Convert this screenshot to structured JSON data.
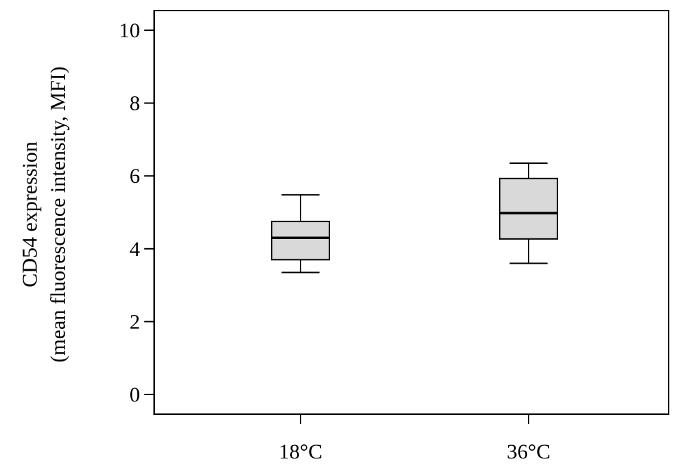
{
  "chart_data": {
    "type": "box",
    "ylabel_line1": "CD54 expression",
    "ylabel_line2": "(mean fluorescence intensity, MFI)",
    "xlabel": "",
    "ylim": [
      0,
      10.5
    ],
    "yticks": [
      0,
      2,
      4,
      6,
      8,
      10
    ],
    "categories": [
      "18°C",
      "36°C"
    ],
    "boxes": [
      {
        "category": "18°C",
        "whisker_low": 3.35,
        "q1": 3.7,
        "median": 4.3,
        "q3": 4.75,
        "whisker_high": 5.48
      },
      {
        "category": "36°C",
        "whisker_low": 3.6,
        "q1": 4.27,
        "median": 4.98,
        "q3": 5.93,
        "whisker_high": 6.35
      }
    ],
    "grid": false,
    "colors": {
      "box_fill": "#d9d9d9",
      "line": "#000000"
    }
  }
}
